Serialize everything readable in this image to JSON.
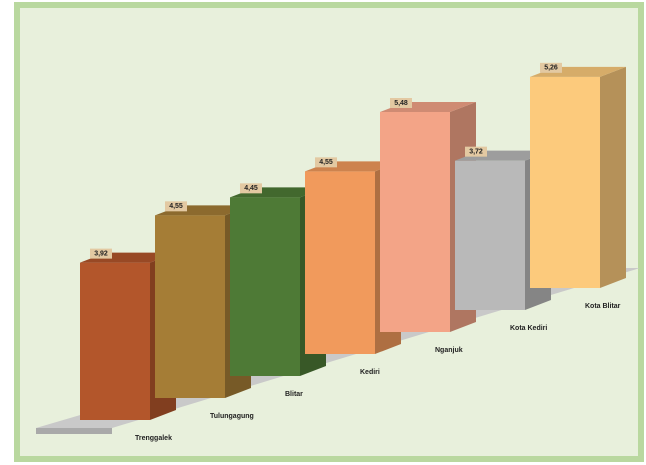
{
  "chart_data": {
    "type": "bar3d",
    "categories": [
      "Trenggalek",
      "Tulungagung",
      "Blitar",
      "Kediri",
      "Nganjuk",
      "Kota Kediri",
      "Kota Blitar"
    ],
    "values": [
      3.92,
      4.55,
      4.45,
      4.55,
      5.48,
      3.72,
      5.26
    ],
    "value_labels": [
      "3,92",
      "4,55",
      "4,45",
      "4,55",
      "5,48",
      "3,72",
      "5,26"
    ],
    "colors": [
      "#b3562b",
      "#a57d36",
      "#4e7a36",
      "#f19a5c",
      "#f3a487",
      "#b9b9b9",
      "#fcca7c"
    ]
  }
}
